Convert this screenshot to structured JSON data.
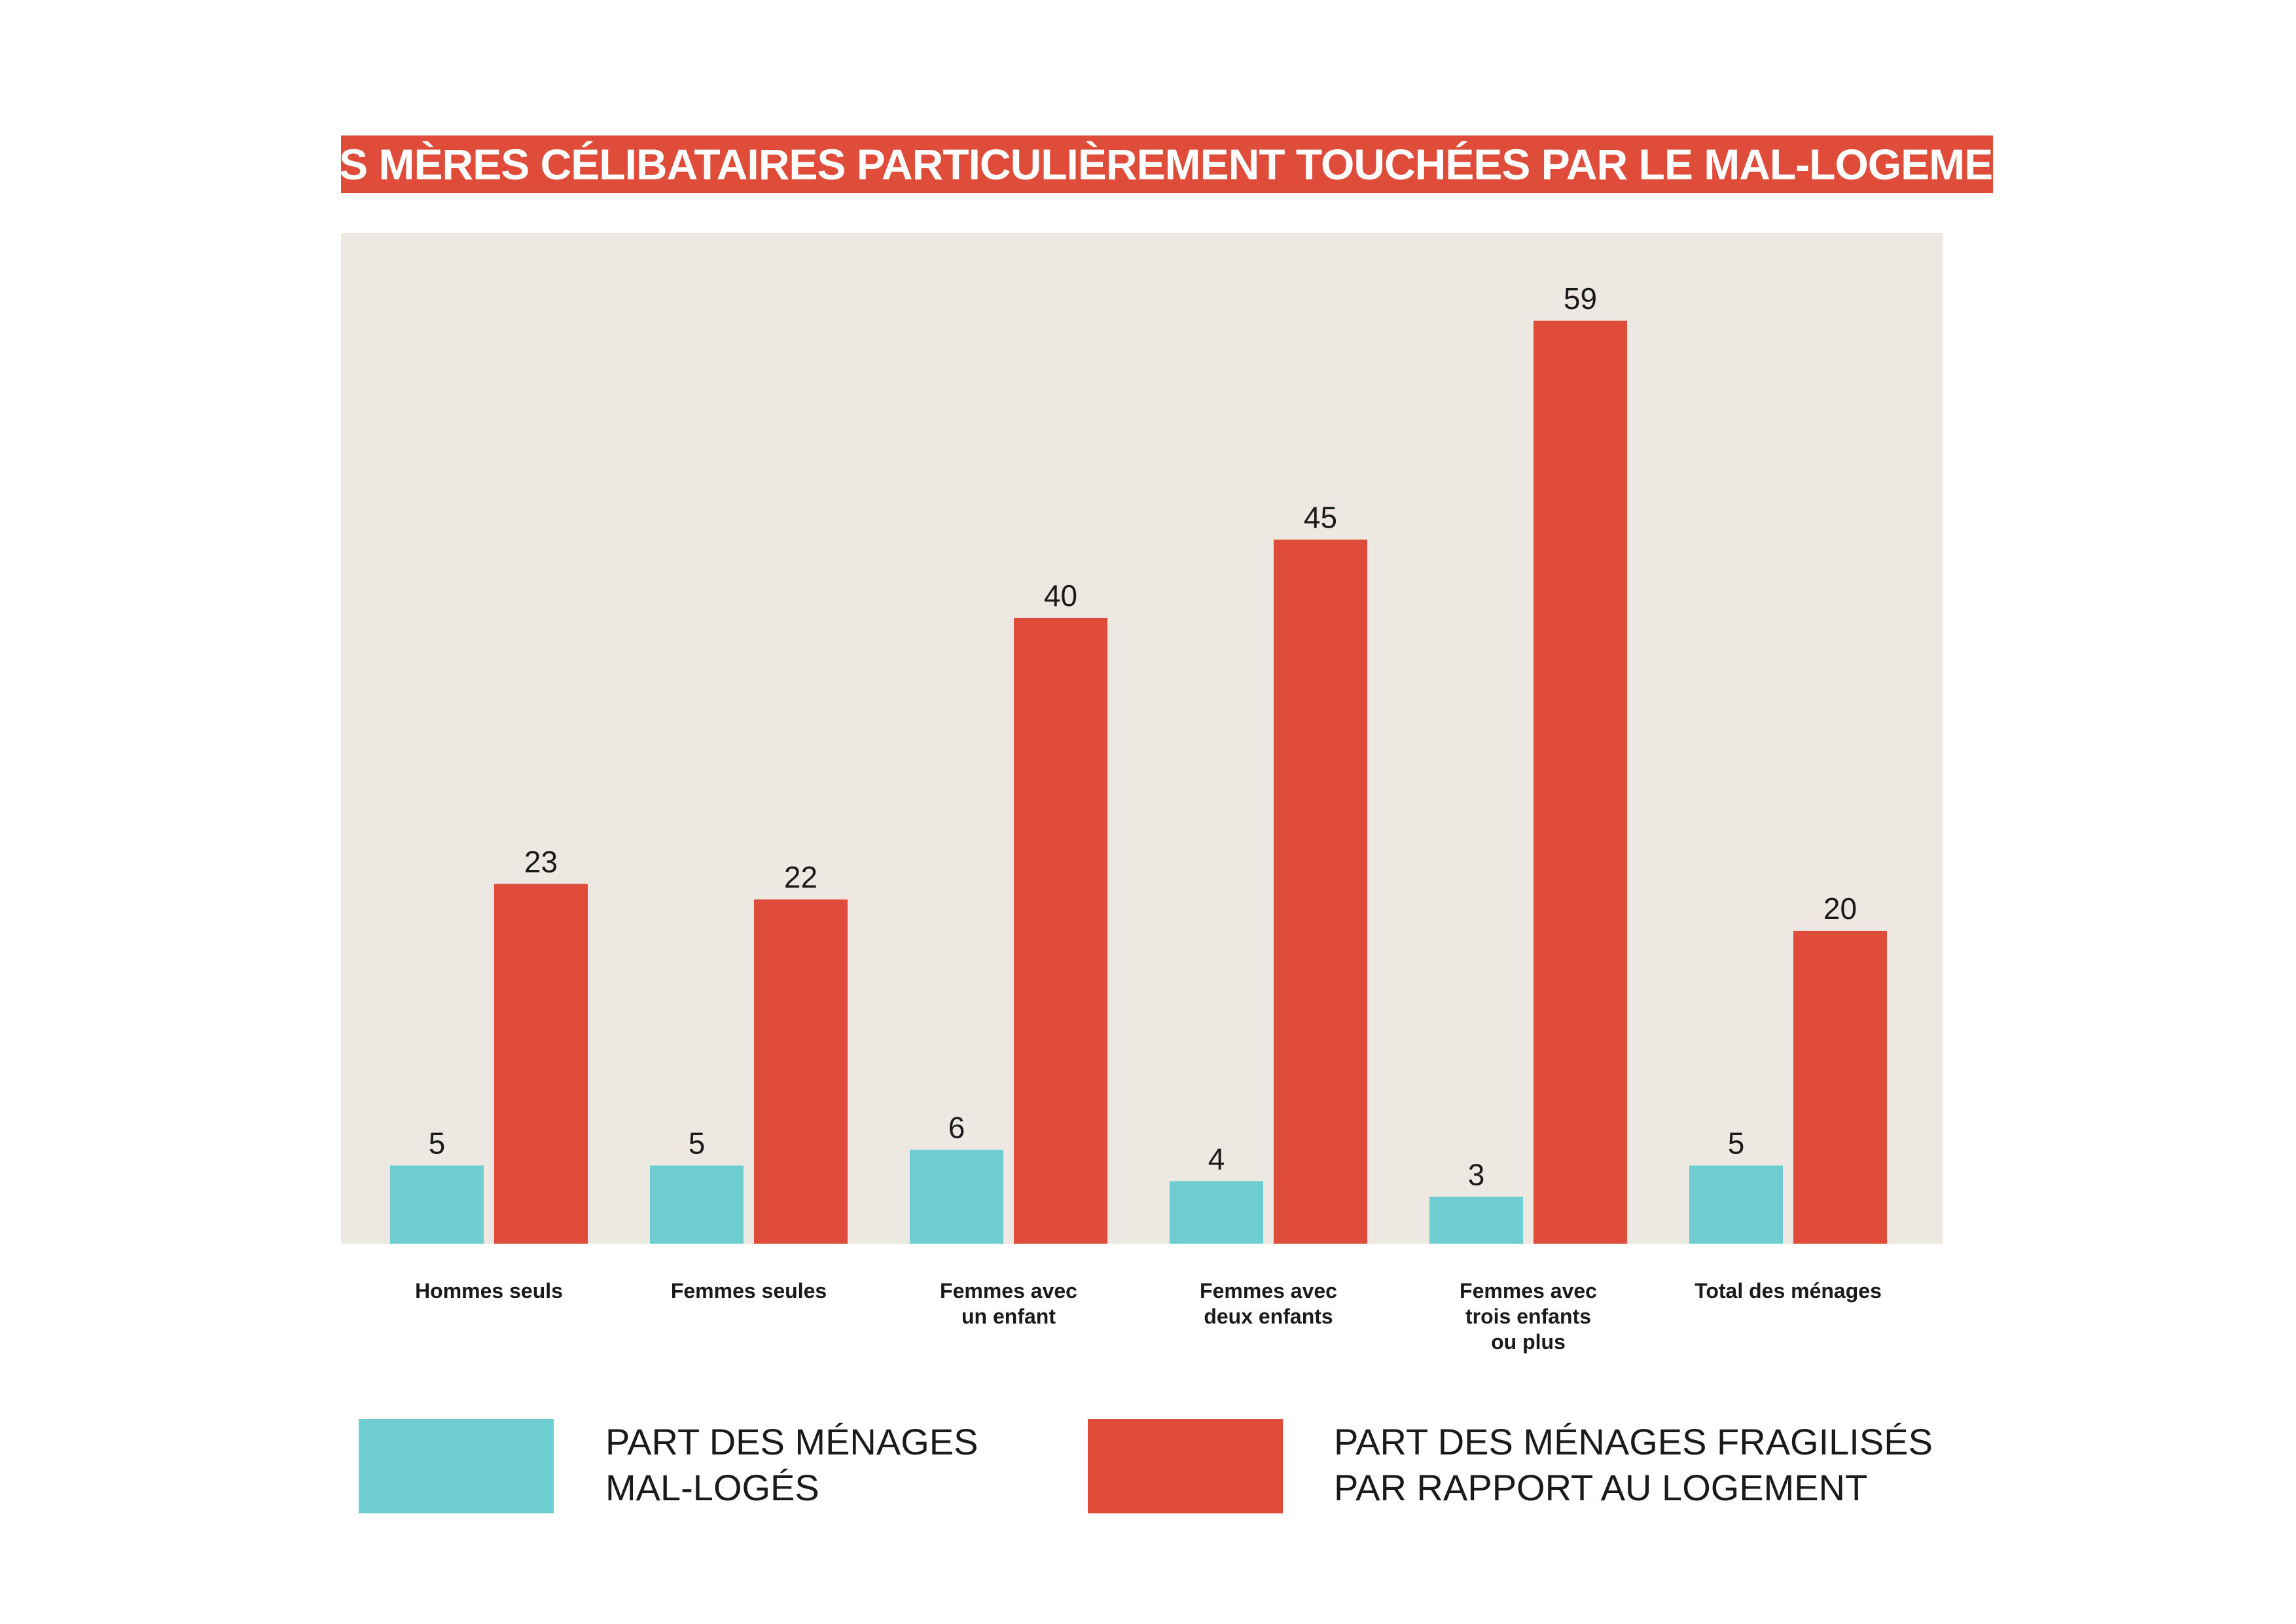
{
  "chart_data": {
    "type": "bar",
    "title": "LES MÈRES CÉLIBATAIRES PARTICULIÈREMENT TOUCHÉES PAR LE MAL-LOGEMENT",
    "categories": [
      "Hommes seuls",
      "Femmes seules",
      "Femmes avec\nun enfant",
      "Femmes avec\ndeux enfants",
      "Femmes avec\ntrois enfants\nou plus",
      "Total des ménages"
    ],
    "series": [
      {
        "name": "PART DES MÉNAGES\nMAL-LOGÉS",
        "color": "#6ecdd1",
        "values": [
          5,
          5,
          6,
          4,
          3,
          5
        ]
      },
      {
        "name": "PART DES MÉNAGES FRAGILISÉS\nPAR RAPPORT AU LOGEMENT",
        "color": "#e04c3a",
        "values": [
          23,
          22,
          40,
          45,
          59,
          20
        ]
      }
    ],
    "ylim": [
      0,
      64.6
    ],
    "background_color": "#ede8e2",
    "grid": false,
    "legend_position": "bottom"
  }
}
